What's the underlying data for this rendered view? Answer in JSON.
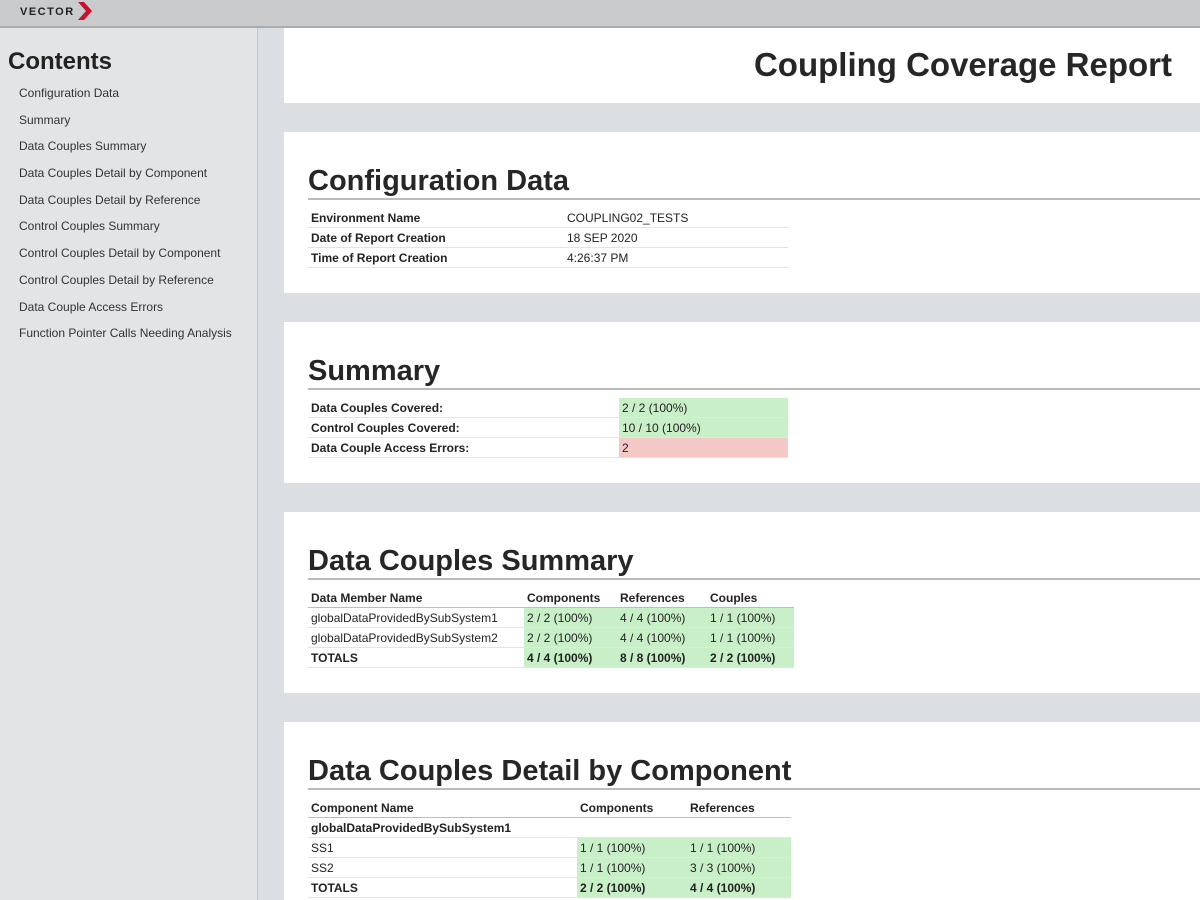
{
  "header": {
    "logo": "VECTOR",
    "title": "Coupling Coverage Report"
  },
  "sidebar": {
    "title": "Contents",
    "links": [
      "Configuration Data",
      "Summary",
      "Data Couples Summary",
      "Data Couples Detail by Component",
      "Data Couples Detail by Reference",
      "Control Couples Summary",
      "Control Couples Detail by Component",
      "Control Couples Detail by Reference",
      "Data Couple Access Errors",
      "Function Pointer Calls Needing Analysis"
    ]
  },
  "sections": [
    {
      "title": "Configuration Data",
      "widths": [
        250,
        218
      ],
      "rows": [
        [
          "Environment Name",
          "COUPLING02_TESTS"
        ],
        [
          "Date of Report Creation",
          "18 SEP 2020"
        ],
        [
          "Time of Report Creation",
          "4:26:37 PM"
        ]
      ]
    },
    {
      "title": "Summary",
      "widths": [
        305,
        163
      ],
      "row_colors": [
        "#c8efc8",
        "#c8efc8",
        "#f5c8c8"
      ],
      "rows": [
        [
          "Data Couples Covered:",
          "2 / 2 (100%)"
        ],
        [
          "Control Couples Covered:",
          "10 / 10 (100%)"
        ],
        [
          "Data Couple Access Errors:",
          "2"
        ]
      ]
    },
    {
      "title": "Data Couples Summary",
      "widths": [
        210,
        87,
        84,
        81
      ],
      "value_color": "#c8efc8",
      "columns": [
        "Data Member Name",
        "Components",
        "References",
        "Couples"
      ],
      "rows": [
        [
          "globalDataProvidedBySubSystem1",
          "2 / 2 (100%)",
          "4 / 4 (100%)",
          "1 / 1 (100%)"
        ],
        [
          "globalDataProvidedBySubSystem2",
          "2 / 2 (100%)",
          "4 / 4 (100%)",
          "1 / 1 (100%)"
        ],
        [
          "TOTALS",
          "4 / 4 (100%)",
          "8 / 8 (100%)",
          "2 / 2 (100%)"
        ]
      ]
    },
    {
      "title": "Data Couples Detail by Component",
      "widths": [
        263,
        104,
        98
      ],
      "value_color": "#c8efc8",
      "columns": [
        "Component Name",
        "Components",
        "References"
      ],
      "rows": [
        [
          "globalDataProvidedBySubSystem1"
        ],
        [
          "SS1",
          "1 / 1 (100%)",
          "1 / 1 (100%)"
        ],
        [
          "SS2",
          "1 / 1 (100%)",
          "3 / 3 (100%)"
        ],
        [
          "TOTALS",
          "2 / 2 (100%)",
          "4 / 4 (100%)"
        ]
      ]
    }
  ]
}
